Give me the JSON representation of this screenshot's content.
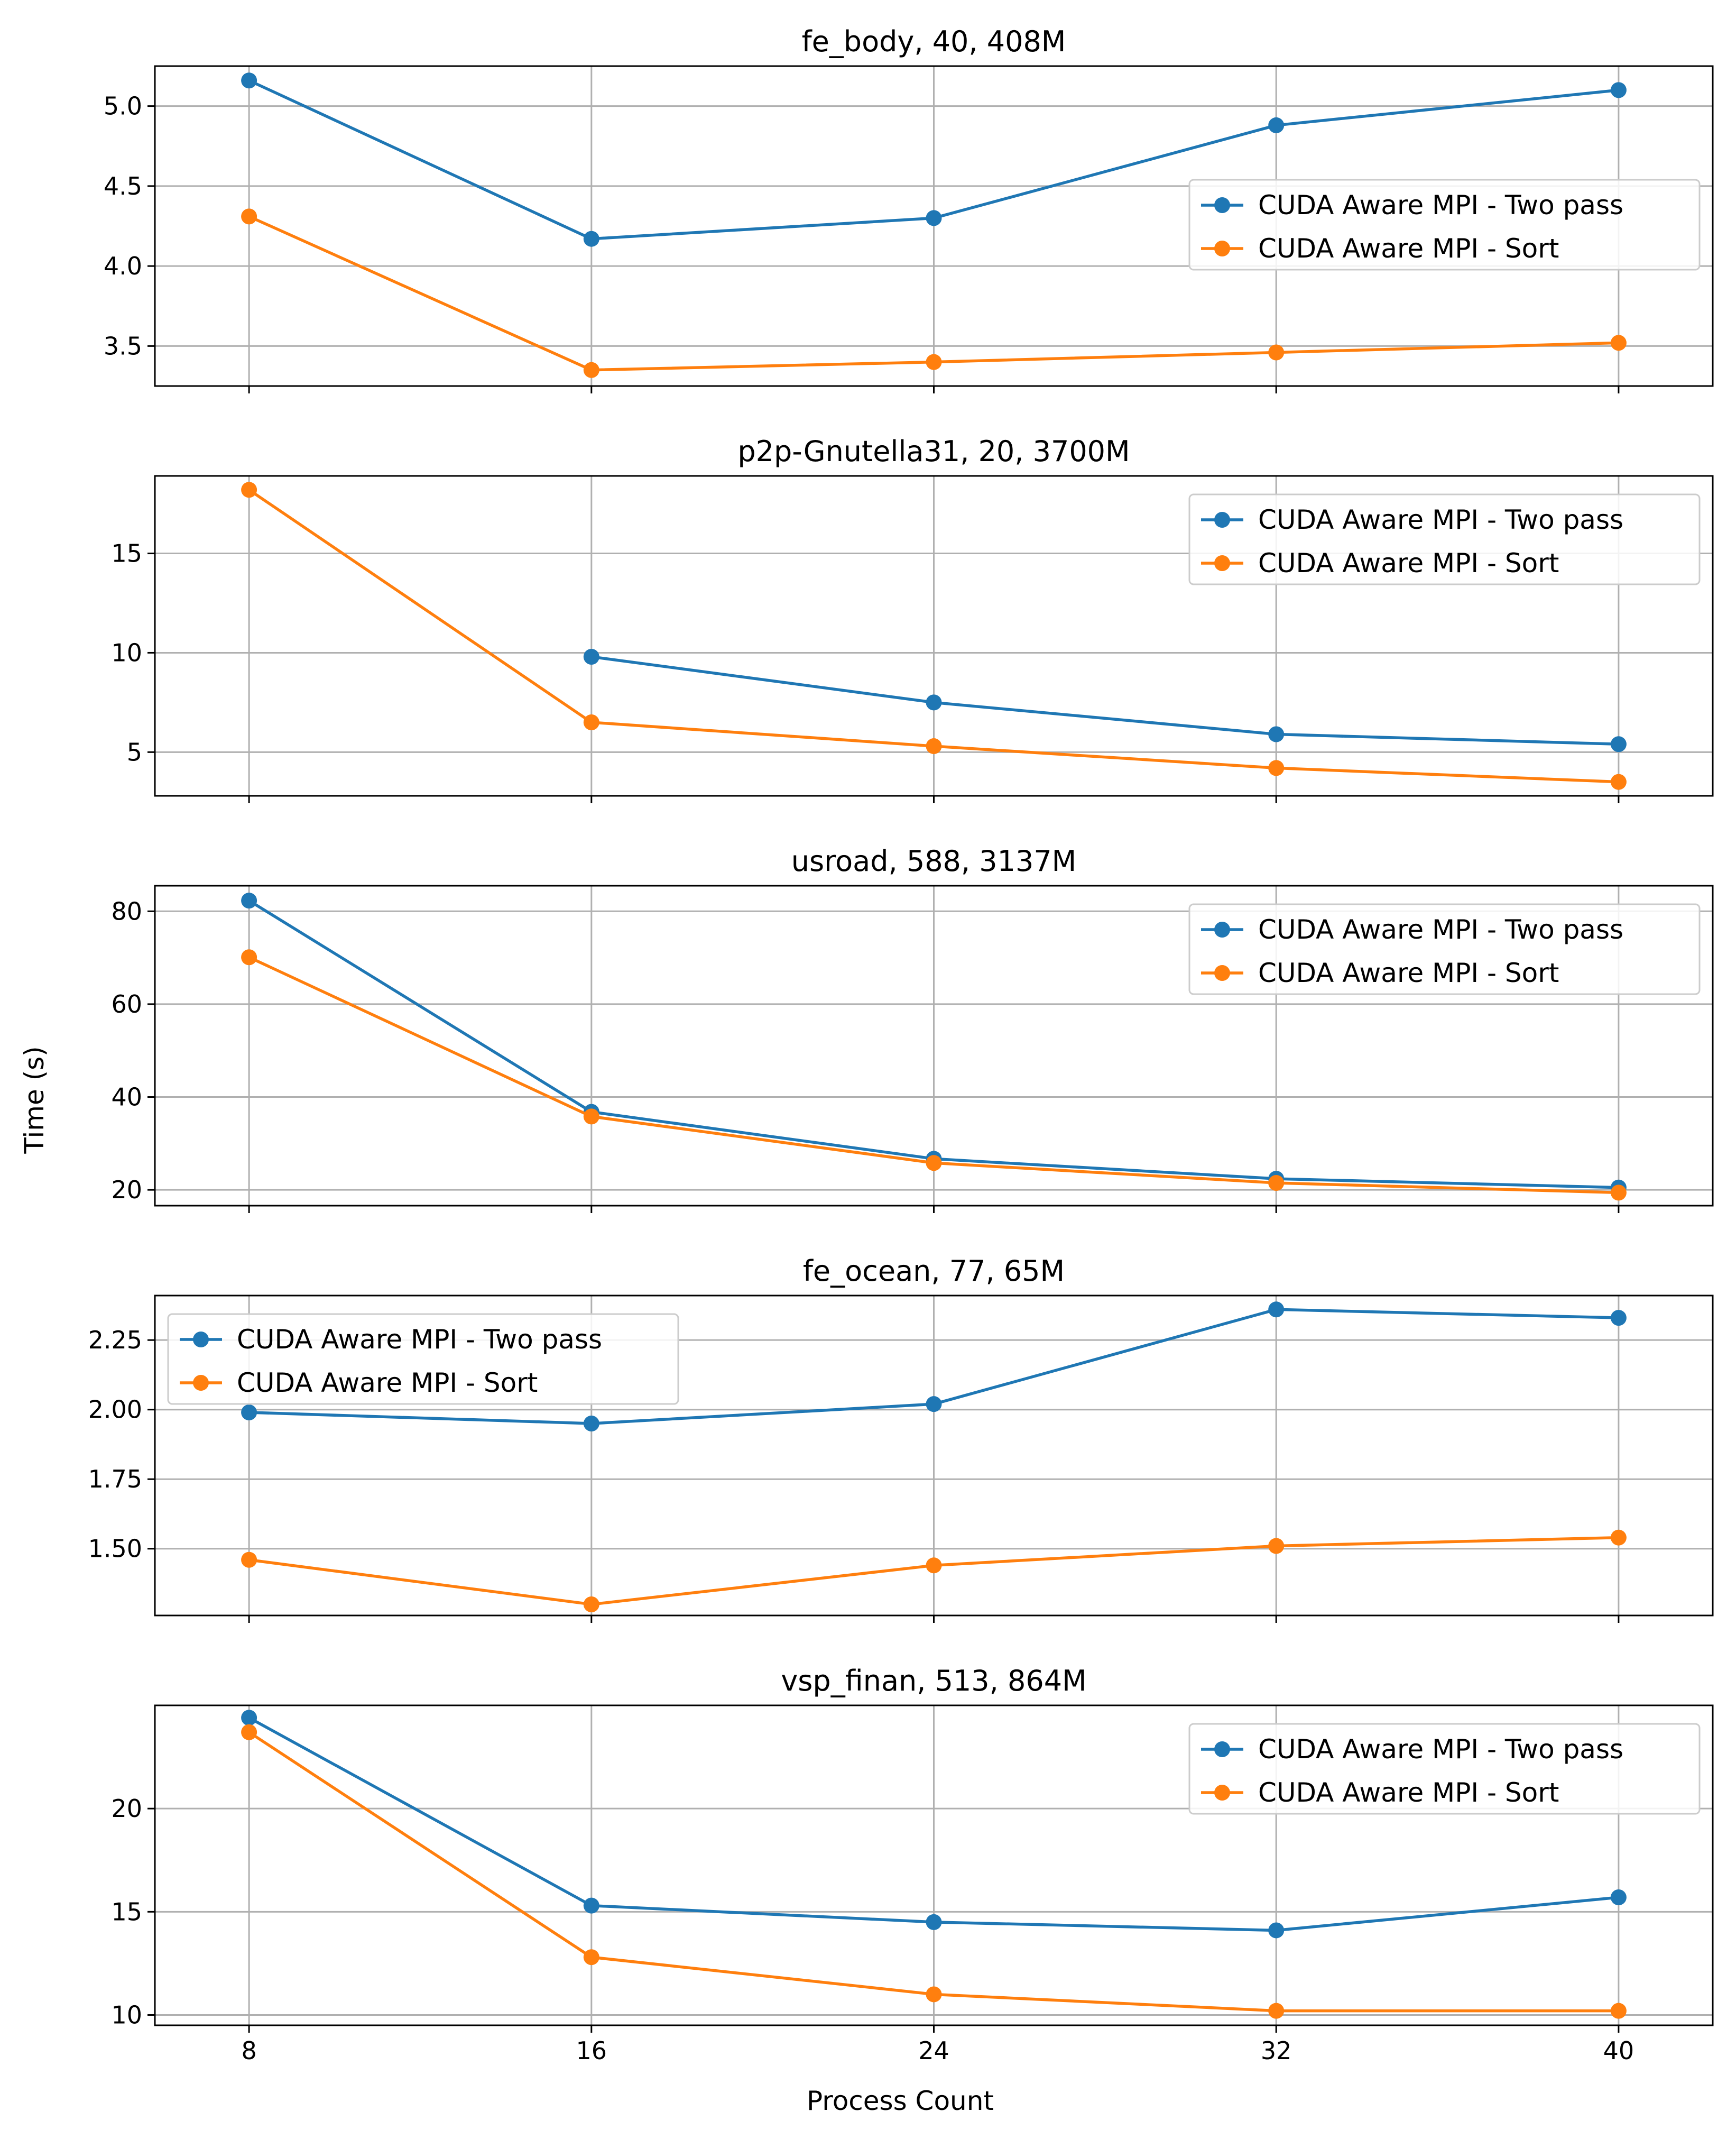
{
  "figure": {
    "xlabel": "Process Count",
    "ylabel": "Time (s)"
  },
  "colors": {
    "two_pass": "#1f77b4",
    "sort": "#ff7f0e",
    "grid": "#b0b0b0",
    "axis": "#000000"
  },
  "chart_data": [
    {
      "type": "line",
      "title": "fe_body, 40, 408M",
      "x": [
        8,
        16,
        24,
        32,
        40
      ],
      "xticks": [
        "8",
        "16",
        "24",
        "32",
        "40"
      ],
      "ylim": [
        3.25,
        5.25
      ],
      "yticks": [
        3.5,
        4.0,
        4.5,
        5.0
      ],
      "ytick_labels": [
        "3.5",
        "4.0",
        "4.5",
        "5.0"
      ],
      "legend": "upper-right-middle",
      "grid": true,
      "series": [
        {
          "name": "CUDA Aware MPI - Two pass",
          "values": [
            5.16,
            4.17,
            4.3,
            4.88,
            5.1
          ]
        },
        {
          "name": "CUDA Aware MPI - Sort",
          "values": [
            4.31,
            3.35,
            3.4,
            3.46,
            3.52
          ]
        }
      ]
    },
    {
      "type": "line",
      "title": "p2p-Gnutella31, 20, 3700M",
      "x": [
        8,
        16,
        24,
        32,
        40
      ],
      "xticks": [
        "8",
        "16",
        "24",
        "32",
        "40"
      ],
      "ylim": [
        2.8,
        18.9
      ],
      "yticks": [
        5,
        10,
        15
      ],
      "ytick_labels": [
        "5",
        "10",
        "15"
      ],
      "legend": "upper-right",
      "grid": true,
      "series": [
        {
          "name": "CUDA Aware MPI - Two pass",
          "values": [
            null,
            9.8,
            7.5,
            5.9,
            5.4
          ]
        },
        {
          "name": "CUDA Aware MPI - Sort",
          "values": [
            18.2,
            6.5,
            5.3,
            4.2,
            3.5
          ]
        }
      ]
    },
    {
      "type": "line",
      "title": "usroad, 588, 3137M",
      "x": [
        8,
        16,
        24,
        32,
        40
      ],
      "xticks": [
        "8",
        "16",
        "24",
        "32",
        "40"
      ],
      "ylim": [
        16.6,
        85.5
      ],
      "yticks": [
        20,
        40,
        60,
        80
      ],
      "ytick_labels": [
        "20",
        "40",
        "60",
        "80"
      ],
      "legend": "upper-right",
      "grid": true,
      "series": [
        {
          "name": "CUDA Aware MPI - Two pass",
          "values": [
            82.3,
            36.8,
            26.7,
            22.4,
            20.5
          ]
        },
        {
          "name": "CUDA Aware MPI - Sort",
          "values": [
            70.1,
            35.8,
            25.8,
            21.5,
            19.4
          ]
        }
      ]
    },
    {
      "type": "line",
      "title": "fe_ocean, 77, 65M",
      "x": [
        8,
        16,
        24,
        32,
        40
      ],
      "xticks": [
        "8",
        "16",
        "24",
        "32",
        "40"
      ],
      "ylim": [
        1.26,
        2.41
      ],
      "yticks": [
        1.5,
        1.75,
        2.0,
        2.25
      ],
      "ytick_labels": [
        "1.50",
        "1.75",
        "2.00",
        "2.25"
      ],
      "legend": "upper-left",
      "grid": true,
      "series": [
        {
          "name": "CUDA Aware MPI - Two pass",
          "values": [
            1.99,
            1.95,
            2.02,
            2.36,
            2.33
          ]
        },
        {
          "name": "CUDA Aware MPI - Sort",
          "values": [
            1.46,
            1.3,
            1.44,
            1.51,
            1.54
          ]
        }
      ]
    },
    {
      "type": "line",
      "title": "vsp_finan, 513, 864M",
      "x": [
        8,
        16,
        24,
        32,
        40
      ],
      "xticks": [
        "8",
        "16",
        "24",
        "32",
        "40"
      ],
      "ylim": [
        9.5,
        25.0
      ],
      "yticks": [
        10,
        15,
        20
      ],
      "ytick_labels": [
        "10",
        "15",
        "20"
      ],
      "legend": "upper-right",
      "grid": true,
      "series": [
        {
          "name": "CUDA Aware MPI - Two pass",
          "values": [
            24.4,
            15.3,
            14.5,
            14.1,
            15.7
          ]
        },
        {
          "name": "CUDA Aware MPI - Sort",
          "values": [
            23.7,
            12.8,
            11.0,
            10.2,
            10.2
          ]
        }
      ]
    }
  ]
}
